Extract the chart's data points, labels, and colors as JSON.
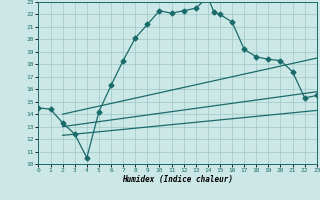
{
  "xlabel": "Humidex (Indice chaleur)",
  "xlim": [
    0,
    23
  ],
  "ylim": [
    10,
    23
  ],
  "xticks": [
    0,
    1,
    2,
    3,
    4,
    5,
    6,
    7,
    8,
    9,
    10,
    11,
    12,
    13,
    14,
    15,
    16,
    17,
    18,
    19,
    20,
    21,
    22,
    23
  ],
  "yticks": [
    10,
    11,
    12,
    13,
    14,
    15,
    16,
    17,
    18,
    19,
    20,
    21,
    22,
    23
  ],
  "bg_color": "#cce8e6",
  "grid_color": "#9cc8c5",
  "line_color": "#1a6b6b",
  "line1_x": [
    0,
    1,
    2,
    3,
    4,
    5,
    6,
    7,
    8,
    9,
    10,
    11,
    12,
    13,
    14,
    14.5,
    15,
    16,
    17,
    18,
    19,
    20,
    21,
    22,
    23
  ],
  "line1_y": [
    14.5,
    14.4,
    13.3,
    12.4,
    10.5,
    14.2,
    16.3,
    18.3,
    20.1,
    21.2,
    22.3,
    22.1,
    22.3,
    22.5,
    23.4,
    22.2,
    22.0,
    21.4,
    19.2,
    18.6,
    18.4,
    18.3,
    17.4,
    15.3,
    15.5
  ],
  "line2_x": [
    2,
    23
  ],
  "line2_y": [
    14.0,
    18.5
  ],
  "line3_x": [
    2,
    23
  ],
  "line3_y": [
    13.0,
    15.8
  ],
  "line4_x": [
    2,
    23
  ],
  "line4_y": [
    12.3,
    14.3
  ],
  "marker": "D",
  "markersize": 2.5,
  "linewidth": 0.9
}
